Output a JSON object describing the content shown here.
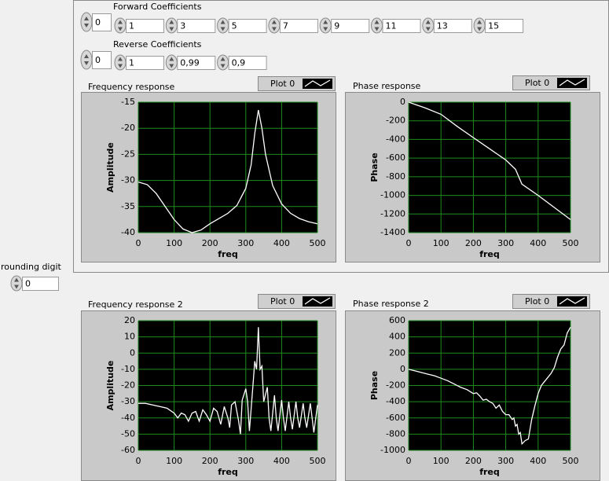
{
  "forward_coefficients": {
    "label": "Forward Coefficients",
    "index": 0,
    "values": [
      "1",
      "3",
      "5",
      "7",
      "9",
      "11",
      "13",
      "15"
    ]
  },
  "reverse_coefficients": {
    "label": "Reverse Coefficients",
    "index": 0,
    "values": [
      "1",
      "0,99",
      "0,9"
    ]
  },
  "rounding_digit": {
    "label": "rounding digit",
    "value": 0
  },
  "chart_data": [
    {
      "type": "line",
      "title": "Frequency response",
      "xlabel": "freq",
      "ylabel": "Amplitude",
      "x": [
        0,
        25,
        50,
        75,
        100,
        125,
        150,
        175,
        200,
        225,
        250,
        275,
        300,
        315,
        325,
        335,
        345,
        355,
        375,
        400,
        425,
        450,
        475,
        500
      ],
      "series": [
        {
          "name": "Plot 0",
          "color": "#ffffff",
          "values": [
            -30.3,
            -30.8,
            -32.5,
            -35,
            -37.5,
            -39.3,
            -40,
            -39.5,
            -38.3,
            -37.3,
            -36.3,
            -34.8,
            -31.5,
            -27,
            -21,
            -16.5,
            -20,
            -25,
            -31,
            -34.5,
            -36.3,
            -37.3,
            -37.9,
            -38.3
          ]
        }
      ],
      "xlim": [
        0,
        500
      ],
      "xticks": [
        0,
        100,
        200,
        300,
        400,
        500
      ],
      "ylim": [
        -40,
        -15
      ],
      "yticks": [
        -15,
        -20,
        -25,
        -30,
        -35,
        -40
      ],
      "grid": true,
      "grid_color": "#1e8c1e",
      "background": "#000000"
    },
    {
      "type": "line",
      "title": "Phase response",
      "xlabel": "freq",
      "ylabel": "Phase",
      "x": [
        0,
        50,
        100,
        150,
        200,
        250,
        300,
        330,
        350,
        400,
        450,
        500
      ],
      "series": [
        {
          "name": "Plot 0",
          "color": "#ffffff",
          "values": [
            0,
            -60,
            -130,
            -260,
            -380,
            -500,
            -620,
            -720,
            -880,
            -1000,
            -1130,
            -1260
          ]
        }
      ],
      "xlim": [
        0,
        500
      ],
      "xticks": [
        0,
        100,
        200,
        300,
        400,
        500
      ],
      "ylim": [
        -1400,
        0
      ],
      "yticks": [
        0,
        -200,
        -400,
        -600,
        -800,
        -1000,
        -1200,
        -1400
      ],
      "grid": true,
      "grid_color": "#1e8c1e",
      "background": "#000000"
    },
    {
      "type": "line",
      "title": "Frequency response 2",
      "xlabel": "freq",
      "ylabel": "Amplitude",
      "x": [
        0,
        20,
        40,
        60,
        80,
        100,
        110,
        120,
        130,
        140,
        150,
        160,
        170,
        180,
        190,
        200,
        210,
        220,
        230,
        240,
        250,
        255,
        260,
        270,
        280,
        285,
        290,
        300,
        305,
        310,
        320,
        325,
        330,
        335,
        340,
        345,
        350,
        360,
        365,
        370,
        380,
        385,
        390,
        400,
        405,
        410,
        420,
        425,
        430,
        440,
        445,
        450,
        460,
        465,
        470,
        480,
        485,
        490,
        500
      ],
      "series": [
        {
          "name": "Plot 0",
          "color": "#ffffff",
          "values": [
            -31,
            -31,
            -32,
            -33,
            -34,
            -37,
            -40,
            -37,
            -38,
            -42,
            -37,
            -36,
            -42,
            -35,
            -38,
            -42,
            -34,
            -36,
            -44,
            -33,
            -40,
            -46,
            -32,
            -30,
            -42,
            -50,
            -29,
            -22,
            -30,
            -48,
            -20,
            -5,
            -10,
            16,
            -10,
            -8,
            -30,
            -21,
            -40,
            -48,
            -26,
            -40,
            -48,
            -29,
            -40,
            -48,
            -30,
            -40,
            -47,
            -30,
            -40,
            -46,
            -31,
            -40,
            -46,
            -31,
            -40,
            -49,
            -32
          ]
        }
      ],
      "xlim": [
        0,
        500
      ],
      "xticks": [
        0,
        100,
        200,
        300,
        400,
        500
      ],
      "ylim": [
        -60,
        20
      ],
      "yticks": [
        20,
        10,
        0,
        -10,
        -20,
        -30,
        -40,
        -50,
        -60
      ],
      "grid": true,
      "grid_color": "#1e8c1e",
      "background": "#000000"
    },
    {
      "type": "line",
      "title": "Phase response 2",
      "xlabel": "freq",
      "ylabel": "Phase",
      "x": [
        0,
        20,
        40,
        60,
        80,
        100,
        120,
        140,
        160,
        180,
        200,
        210,
        220,
        230,
        240,
        250,
        260,
        270,
        280,
        290,
        300,
        310,
        320,
        325,
        330,
        335,
        340,
        345,
        350,
        355,
        360,
        370,
        380,
        390,
        400,
        410,
        420,
        430,
        440,
        450,
        460,
        470,
        480,
        490,
        500
      ],
      "series": [
        {
          "name": "Plot 0",
          "color": "#ffffff",
          "values": [
            0,
            -20,
            -40,
            -60,
            -80,
            -110,
            -140,
            -180,
            -220,
            -250,
            -300,
            -290,
            -330,
            -380,
            -370,
            -400,
            -420,
            -480,
            -440,
            -520,
            -560,
            -560,
            -620,
            -600,
            -700,
            -680,
            -800,
            -780,
            -920,
            -900,
            -880,
            -860,
            -620,
            -450,
            -300,
            -200,
            -150,
            -100,
            -50,
            20,
            150,
            250,
            300,
            450,
            520
          ]
        }
      ],
      "xlim": [
        0,
        500
      ],
      "xticks": [
        0,
        100,
        200,
        300,
        400,
        500
      ],
      "ylim": [
        -1000,
        600
      ],
      "yticks": [
        600,
        400,
        200,
        0,
        -200,
        -400,
        -600,
        -800,
        -1000
      ],
      "grid": true,
      "grid_color": "#1e8c1e",
      "background": "#000000"
    }
  ]
}
